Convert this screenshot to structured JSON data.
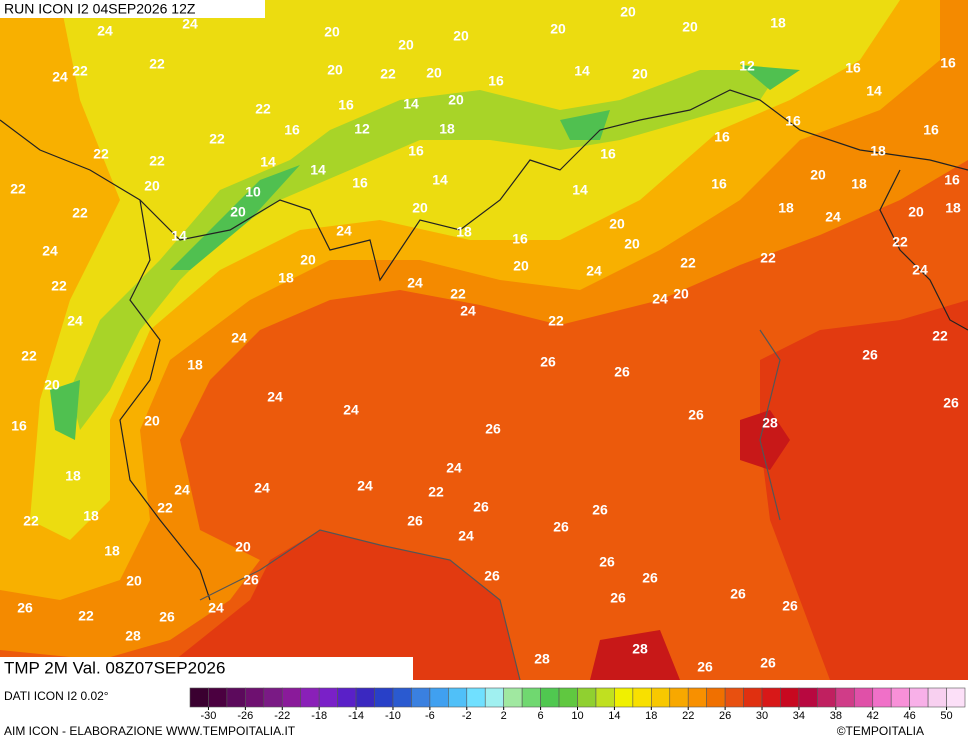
{
  "header": {
    "run": "RUN ICON I2 04SEP2026 12Z"
  },
  "map": {
    "temperature_labels": [
      24,
      24,
      20,
      20,
      20,
      20,
      20,
      20,
      18,
      24,
      22,
      22,
      20,
      22,
      20,
      16,
      14,
      20,
      12,
      16,
      16,
      22,
      16,
      14,
      20,
      14,
      22,
      16,
      12,
      18,
      16,
      16,
      22,
      22,
      14,
      14,
      16,
      16,
      16,
      18,
      22,
      20,
      10,
      16,
      14,
      14,
      16,
      20,
      18,
      16,
      22,
      20,
      20,
      20,
      18,
      24,
      20,
      18,
      24,
      14,
      24,
      18,
      16,
      20,
      22,
      22,
      20,
      24,
      20,
      24,
      22,
      22,
      24,
      24,
      18,
      22,
      24,
      22,
      24,
      20,
      22,
      24,
      26,
      26,
      26,
      22,
      20,
      18,
      24,
      24,
      26,
      26,
      28,
      26,
      16,
      20,
      18,
      24,
      24,
      24,
      24,
      22,
      22,
      18,
      22,
      26,
      26,
      26,
      26,
      18,
      20,
      24,
      20,
      26,
      26,
      26,
      26,
      26,
      22,
      26,
      24,
      26,
      26,
      26,
      28,
      28,
      28,
      26,
      26
    ]
  },
  "footer": {
    "field": "TMP 2M Val. 08Z07SEP2026",
    "source": "DATI ICON I2 0.02°",
    "credit": "AIM ICON - ELABORAZIONE WWW.TEMPOITALIA.IT",
    "copyright": "©TEMPOITALIA"
  },
  "colorbar": {
    "range": [
      -32,
      52
    ],
    "ticks": [
      -30,
      -26,
      -22,
      -18,
      -14,
      -10,
      -6,
      -2,
      2,
      6,
      10,
      14,
      18,
      22,
      26,
      30,
      34,
      38,
      42,
      46,
      50
    ],
    "colors": [
      "#3a0030",
      "#4b0040",
      "#5c0a5c",
      "#6e1070",
      "#7a1a85",
      "#8a1a9a",
      "#8a20b8",
      "#7a20c8",
      "#5a20c8",
      "#3a28c0",
      "#2840c8",
      "#2a5ad0",
      "#3a80e0",
      "#40a0f0",
      "#50c0f8",
      "#70e0ff",
      "#a0f0f0",
      "#a0e8a0",
      "#70d870",
      "#50c850",
      "#60c840",
      "#90d030",
      "#c0e020",
      "#f0f000",
      "#f8e000",
      "#f8c800",
      "#f8a800",
      "#f89000",
      "#f07000",
      "#e85010",
      "#e03010",
      "#d81818",
      "#c80820",
      "#b80840",
      "#c02060",
      "#d03c88",
      "#e050a8",
      "#f070c8",
      "#f890d8",
      "#f8b0e8",
      "#f8d0f0",
      "#fce0f8"
    ]
  }
}
